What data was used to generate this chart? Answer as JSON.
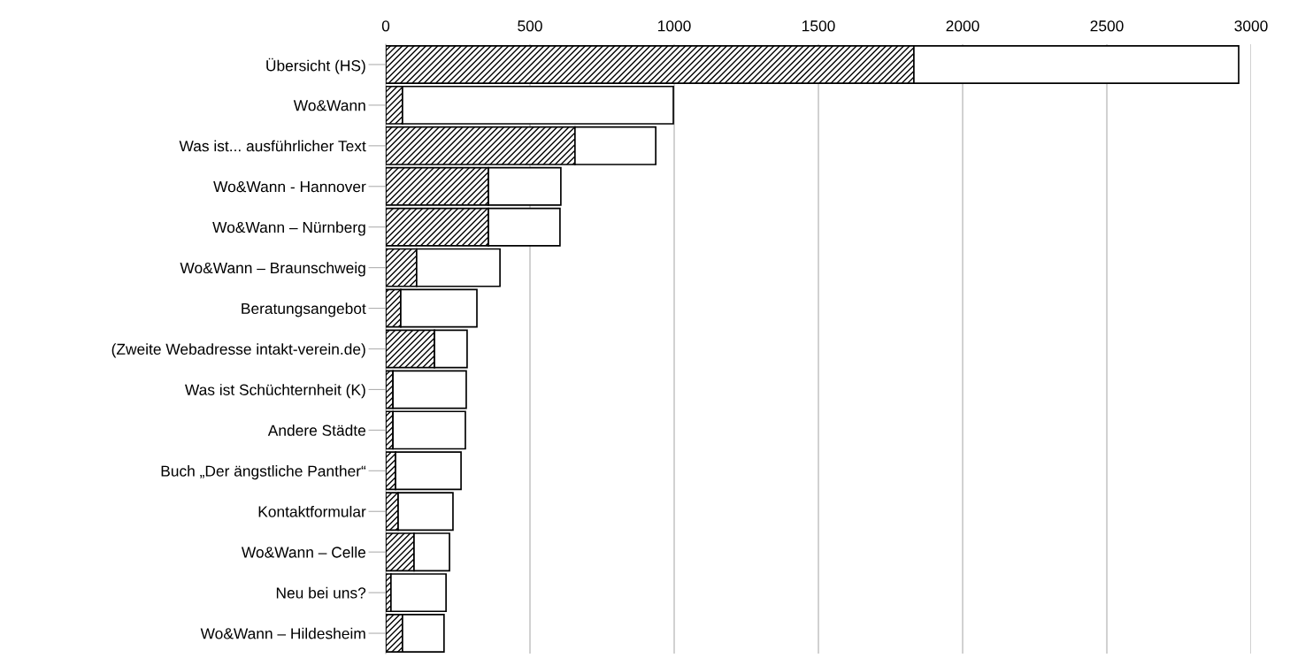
{
  "chart_data": {
    "type": "bar",
    "orientation": "horizontal",
    "stacked": true,
    "categories": [
      "Übersicht (HS)",
      "Wo&Wann",
      "Was ist... ausführlicher Text",
      "Wo&Wann - Hannover",
      "Wo&Wann – Nürnberg",
      "Wo&Wann – Braunschweig",
      "Beratungsangebot",
      "(Zweite Webadresse intakt-verein.de)",
      "Was ist Schüchternheit (K)",
      "Andere Städte",
      "Buch „Der ängstliche Panther“",
      "Kontaktformular",
      "Wo&Wann – Celle",
      "Neu bei uns?",
      "Wo&Wann – Hildesheim"
    ],
    "series": [
      {
        "color": "#000000",
        "values": [
          1831,
          58,
          656,
          356,
          356,
          107,
          52,
          169,
          25,
          25,
          34,
          43,
          98,
          18,
          58
        ]
      },
      {
        "color": "#ffffff",
        "values": [
          1126,
          939,
          280,
          251,
          248,
          289,
          264,
          113,
          254,
          251,
          227,
          190,
          123,
          191,
          144
        ]
      }
    ],
    "xlim": [
      0,
      3000
    ],
    "xticks": [
      0,
      500,
      1000,
      1500,
      2000,
      2500,
      3000
    ],
    "grid": "x",
    "legend": false
  }
}
